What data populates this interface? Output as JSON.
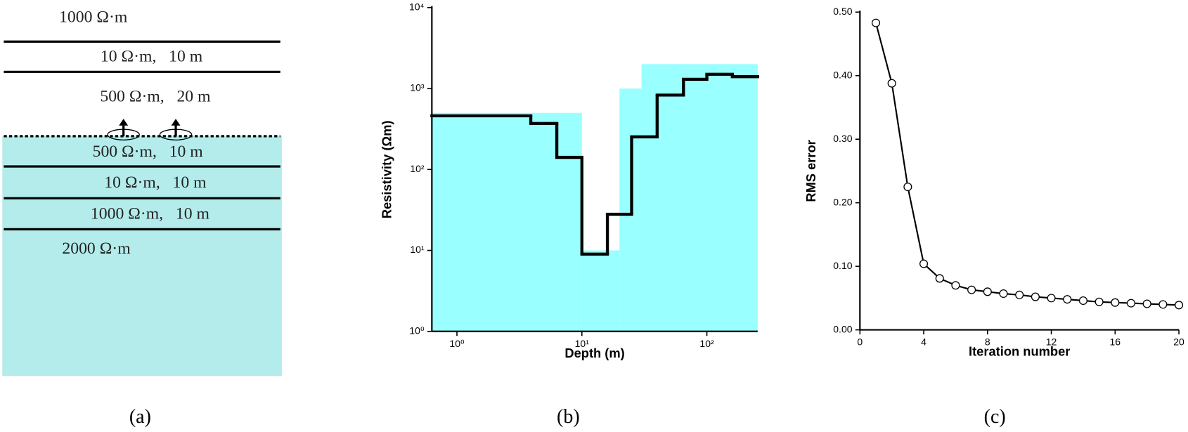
{
  "diagram": {
    "layers": [
      "1000 Ω·m",
      "10 Ω·m,   10 m",
      "500 Ω·m,   20 m",
      "500 Ω·m,   10 m",
      "10 Ω·m,   10 m",
      "1000 Ω·m,   10 m",
      "2000 Ω·m"
    ]
  },
  "captions": [
    "(a)",
    "(b)",
    "(c)"
  ],
  "chart_data": [
    {
      "type": "step",
      "xlabel": "Depth (m)",
      "ylabel": "Resistivity (Ωm)",
      "xscale": "log",
      "yscale": "log",
      "xlim": [
        0.63,
        255
      ],
      "ylim": [
        1,
        10000
      ],
      "xticks": [
        {
          "value": 1,
          "label": "10⁰"
        },
        {
          "value": 10,
          "label": "10¹"
        },
        {
          "value": 100,
          "label": "10²"
        }
      ],
      "yticks": [
        {
          "value": 1,
          "label": "10⁰"
        },
        {
          "value": 10,
          "label": "10¹"
        },
        {
          "value": 100,
          "label": "10²"
        },
        {
          "value": 1000,
          "label": "10³"
        },
        {
          "value": 10000,
          "label": "10⁴"
        }
      ],
      "series": [
        {
          "style": "fill",
          "color": "#99ffff",
          "x": [
            0.63,
            10,
            20,
            30
          ],
          "values": [
            500,
            10,
            1000,
            2000
          ]
        },
        {
          "style": "line",
          "color": "#000000",
          "x": [
            0.63,
            3.9,
            6.3,
            10,
            16,
            25,
            40,
            65,
            100,
            160
          ],
          "values": [
            460,
            370,
            141,
            9,
            28,
            253,
            830,
            1300,
            1500,
            1400
          ]
        }
      ]
    },
    {
      "type": "line",
      "xlabel": "Iteration number",
      "ylabel": "RMS error",
      "xlim": [
        0,
        20
      ],
      "ylim": [
        0,
        0.5
      ],
      "xticks": [
        0,
        4,
        8,
        12,
        16,
        20
      ],
      "yticks": [
        {
          "value": 0,
          "label": "0.00"
        },
        {
          "value": 0.1,
          "label": "0.10"
        },
        {
          "value": 0.2,
          "label": "0.20"
        },
        {
          "value": 0.3,
          "label": "0.30"
        },
        {
          "value": 0.4,
          "label": "0.40"
        },
        {
          "value": 0.5,
          "label": "0.50"
        }
      ],
      "series": [
        {
          "color": "#000000",
          "marker": "circle",
          "x": [
            1,
            2,
            3,
            4,
            5,
            6,
            7,
            8,
            9,
            10,
            11,
            12,
            13,
            14,
            15,
            16,
            17,
            18,
            19,
            20
          ],
          "values": [
            0.483,
            0.388,
            0.225,
            0.104,
            0.081,
            0.07,
            0.063,
            0.06,
            0.057,
            0.055,
            0.052,
            0.05,
            0.048,
            0.046,
            0.044,
            0.043,
            0.042,
            0.041,
            0.04,
            0.039
          ]
        }
      ]
    }
  ]
}
